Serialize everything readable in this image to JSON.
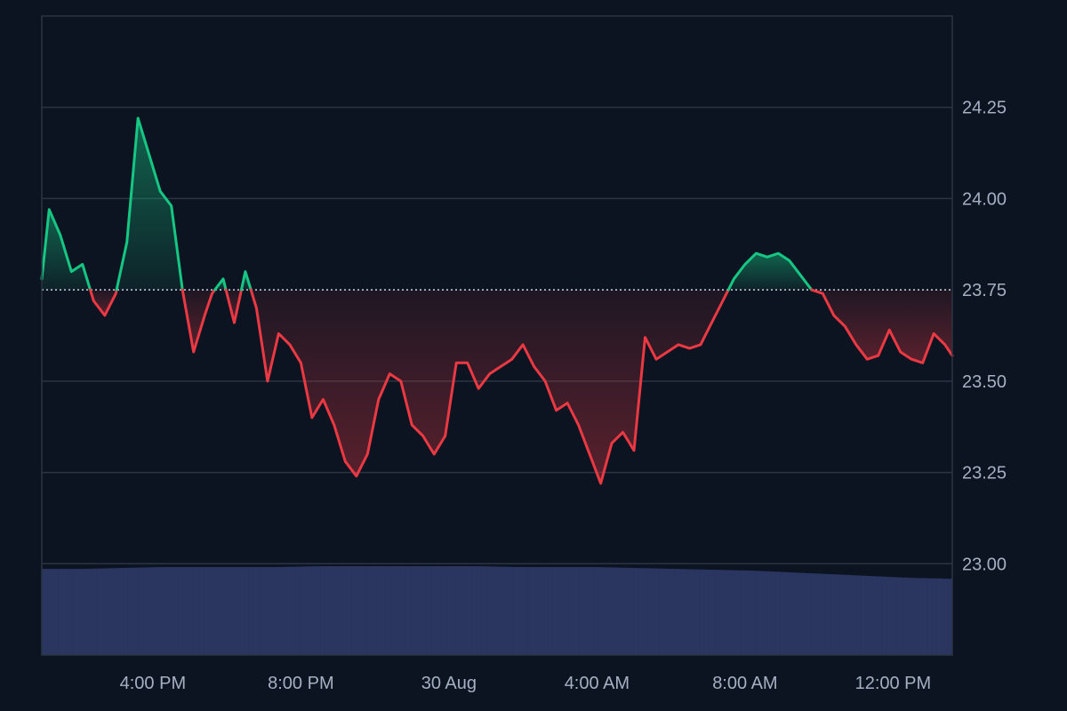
{
  "chart_data": {
    "type": "area",
    "baseline": 23.75,
    "ylim": [
      22.75,
      24.5
    ],
    "yticks": [
      23.0,
      23.25,
      23.5,
      23.75,
      24.0,
      24.25
    ],
    "ytick_labels": [
      "23.00",
      "23.25",
      "23.50",
      "23.75",
      "24.00",
      "24.25"
    ],
    "xtick_labels": [
      "4:00 PM",
      "8:00 PM",
      "30 Aug",
      "4:00 AM",
      "8:00 AM",
      "12:00 PM"
    ],
    "xtick_hours": [
      4,
      8,
      12,
      16,
      20,
      24
    ],
    "x_start_hour": 1.0,
    "x_end_hour": 25.6,
    "colors": {
      "up": "#16c784",
      "down": "#ea3943",
      "volume": "#2a3560",
      "grid": "#2b3443",
      "baseline": "#cfd6e4"
    },
    "price_hours": [
      1.0,
      1.2,
      1.5,
      1.8,
      2.1,
      2.4,
      2.7,
      3.0,
      3.3,
      3.6,
      3.9,
      4.2,
      4.5,
      4.8,
      5.1,
      5.4,
      5.6,
      5.9,
      6.2,
      6.5,
      6.8,
      7.1,
      7.4,
      7.7,
      8.0,
      8.3,
      8.6,
      8.9,
      9.2,
      9.5,
      9.8,
      10.1,
      10.4,
      10.7,
      11.0,
      11.3,
      11.6,
      11.9,
      12.2,
      12.5,
      12.8,
      13.1,
      13.4,
      13.7,
      14.0,
      14.3,
      14.6,
      14.9,
      15.2,
      15.5,
      15.8,
      16.1,
      16.4,
      16.7,
      17.0,
      17.3,
      17.6,
      17.9,
      18.2,
      18.5,
      18.8,
      19.1,
      19.4,
      19.7,
      20.0,
      20.3,
      20.6,
      20.9,
      21.2,
      21.5,
      21.8,
      22.1,
      22.4,
      22.7,
      23.0,
      23.3,
      23.6,
      23.9,
      24.2,
      24.5,
      24.8,
      25.1,
      25.4,
      25.6
    ],
    "price_values": [
      23.78,
      23.97,
      23.9,
      23.8,
      23.82,
      23.72,
      23.68,
      23.74,
      23.88,
      24.22,
      24.12,
      24.02,
      23.98,
      23.75,
      23.58,
      23.68,
      23.74,
      23.78,
      23.66,
      23.8,
      23.7,
      23.5,
      23.63,
      23.6,
      23.55,
      23.4,
      23.45,
      23.38,
      23.28,
      23.24,
      23.3,
      23.45,
      23.52,
      23.5,
      23.38,
      23.35,
      23.3,
      23.35,
      23.55,
      23.55,
      23.48,
      23.52,
      23.54,
      23.56,
      23.6,
      23.54,
      23.5,
      23.42,
      23.44,
      23.38,
      23.3,
      23.22,
      23.33,
      23.36,
      23.31,
      23.62,
      23.56,
      23.58,
      23.6,
      23.59,
      23.6,
      23.66,
      23.72,
      23.78,
      23.82,
      23.85,
      23.84,
      23.85,
      23.83,
      23.79,
      23.75,
      23.74,
      23.68,
      23.65,
      23.6,
      23.56,
      23.57,
      23.64,
      23.58,
      23.56,
      23.55,
      23.63,
      23.6,
      23.57
    ],
    "volume_levels": [
      0.96,
      0.96,
      0.97,
      0.98,
      0.98,
      0.98,
      0.98,
      0.99,
      0.99,
      0.99,
      0.99,
      0.99,
      0.98,
      0.98,
      0.98,
      0.97,
      0.96,
      0.95,
      0.94,
      0.92,
      0.9,
      0.88,
      0.86,
      0.85
    ]
  }
}
